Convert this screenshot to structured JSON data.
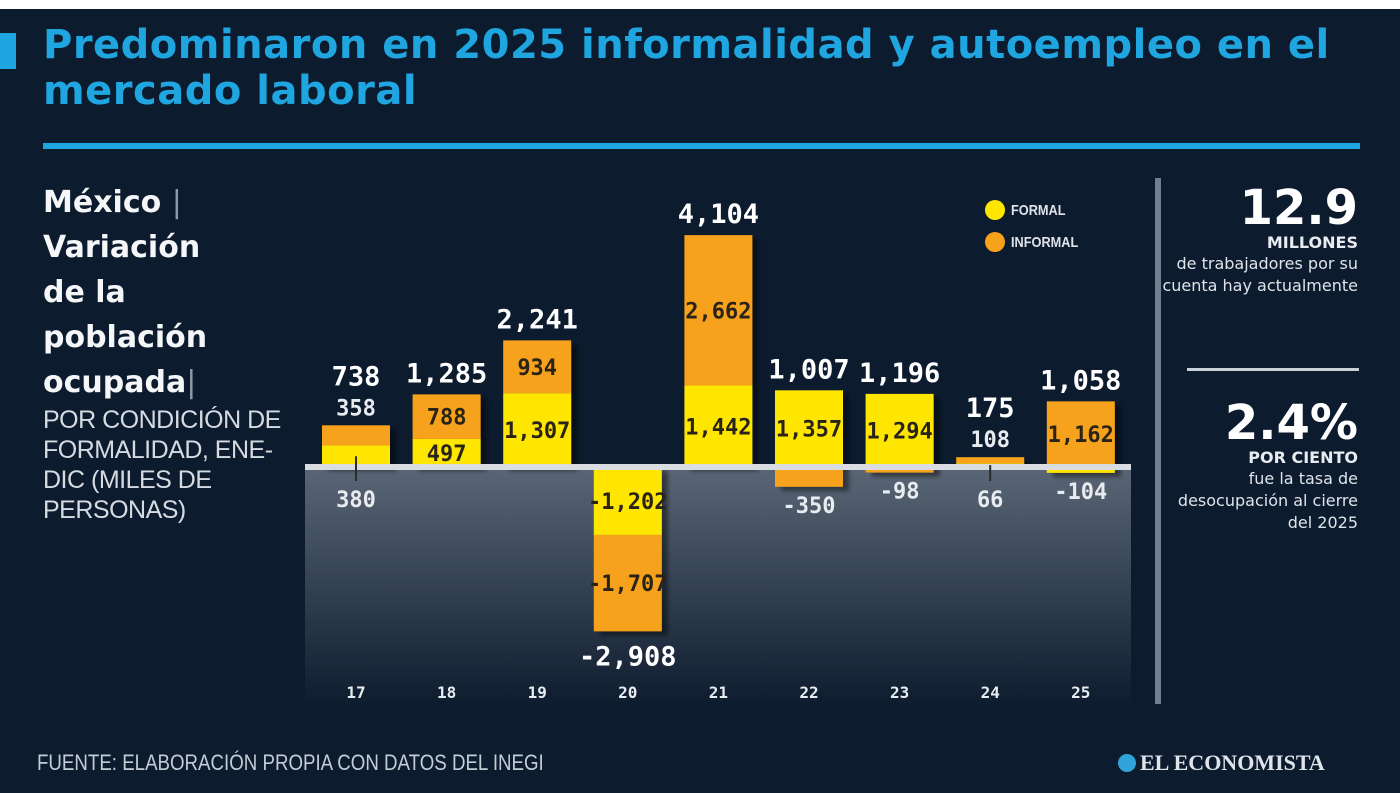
{
  "header": {
    "title": "Predominaron en 2025 informalidad y autoempleo en el mercado laboral"
  },
  "subtitle": {
    "bold_lines": [
      "México",
      "Variación",
      "de la",
      "población",
      "ocupada"
    ],
    "separator": "|",
    "light_text": "POR CONDICIÓN DE FORMALIDAD, ENE-DIC (MILES DE PERSONAS)"
  },
  "colors": {
    "background": "#0d1b2e",
    "title": "#1fa6e0",
    "formal": "#ffe600",
    "informal": "#f7a21b",
    "baseline": "#d9dde2",
    "negative_area_top": "#5a6675",
    "negative_area_bottom": "#0d1b2e"
  },
  "chart_data": {
    "type": "bar",
    "stacked": true,
    "title": "Variación de la población ocupada por condición de formalidad, ene-dic (miles de personas)",
    "xlabel": "",
    "ylabel": "Miles de personas",
    "categories": [
      "17",
      "18",
      "19",
      "20",
      "21",
      "22",
      "23",
      "24",
      "25"
    ],
    "series": [
      {
        "name": "FORMAL",
        "values": [
          380,
          497,
          1307,
          -1202,
          1442,
          1357,
          1294,
          66,
          -104
        ]
      },
      {
        "name": "INFORMAL",
        "values": [
          358,
          788,
          934,
          -1707,
          2662,
          -350,
          -98,
          108,
          1162
        ]
      }
    ],
    "totals": [
      738,
      1285,
      2241,
      -2908,
      4104,
      1007,
      1196,
      175,
      1058
    ],
    "total_labels": [
      "738",
      "1,285",
      "2,241",
      "-2,908",
      "4,104",
      "1,007",
      "1,196",
      "175",
      "1,058"
    ],
    "formal_labels": [
      "380",
      "497",
      "1,307",
      "-1,202",
      "1,442",
      "1,357",
      "1,294",
      "66",
      "-104"
    ],
    "informal_labels": [
      "358",
      "788",
      "934",
      "-1,707",
      "2,662",
      "-350",
      "-98",
      "108",
      "1,162"
    ],
    "ylim": [
      -2908,
      4104
    ],
    "grid": false,
    "legend": {
      "position": "top-right",
      "entries": [
        "FORMAL",
        "INFORMAL"
      ]
    }
  },
  "stats": [
    {
      "value": "12.9",
      "unit": "MILLONES",
      "description": "de trabajadores por su cuenta hay actualmente"
    },
    {
      "value": "2.4%",
      "unit": "POR CIENTO",
      "description": "fue la tasa de desocupación al cierre del 2025"
    }
  ],
  "footer": {
    "source": "FUENTE: ELABORACIÓN PROPIA CON DATOS DEL INEGI",
    "brand": "EL ECONOMISTA",
    "brand_icon": "globe-logo-icon"
  }
}
